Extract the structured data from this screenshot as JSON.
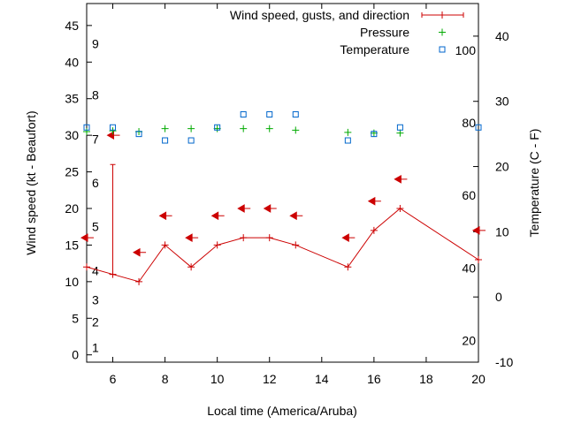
{
  "chart_data": {
    "type": "line",
    "xlabel": "Local time (America/Aruba)",
    "ylabel_left": "Wind speed (kt - Beaufort)",
    "ylabel_right": "Temperature (C - F)",
    "xlim": [
      5,
      20
    ],
    "ylim_left": [
      -1,
      48
    ],
    "ylim_right_celsius": [
      -10,
      45
    ],
    "x_ticks": [
      "6",
      "8",
      "10",
      "12",
      "14",
      "16",
      "18",
      "20"
    ],
    "y_left_ticks": [
      "0",
      "5",
      "10",
      "15",
      "20",
      "25",
      "30",
      "35",
      "40",
      "45"
    ],
    "y_right_celsius_ticks": [
      "-10",
      "0",
      "10",
      "20",
      "30",
      "40"
    ],
    "beaufort_labels": [
      {
        "text": "1",
        "kt": 1
      },
      {
        "text": "2",
        "kt": 4.5
      },
      {
        "text": "3",
        "kt": 7.5
      },
      {
        "text": "4",
        "kt": 11.5
      },
      {
        "text": "5",
        "kt": 17.5
      },
      {
        "text": "6",
        "kt": 23.5
      },
      {
        "text": "7",
        "kt": 29.5
      },
      {
        "text": "8",
        "kt": 35.5
      },
      {
        "text": "9",
        "kt": 42.5
      }
    ],
    "fahrenheit_labels": [
      {
        "text": "20",
        "celsius": -6.7
      },
      {
        "text": "40",
        "celsius": 4.4
      },
      {
        "text": "60",
        "celsius": 15.6
      },
      {
        "text": "80",
        "celsius": 26.7
      },
      {
        "text": "100",
        "celsius": 37.8
      }
    ],
    "legend_position": "top-right",
    "series": [
      {
        "name": "Wind speed, gusts, and direction",
        "color": "#cc0000",
        "x": [
          5,
          6,
          7,
          8,
          9,
          10,
          11,
          12,
          13,
          15,
          16,
          17,
          20
        ],
        "speed": [
          12,
          11,
          10,
          15,
          12,
          15,
          16,
          16,
          15,
          12,
          17,
          20,
          13
        ],
        "gusts": [
          {
            "x": 6,
            "from": 11,
            "to": 26
          }
        ],
        "direction_arrows": [
          {
            "x": 5,
            "y": 16
          },
          {
            "x": 6,
            "y": 30
          },
          {
            "x": 7,
            "y": 14
          },
          {
            "x": 8,
            "y": 19
          },
          {
            "x": 9,
            "y": 16
          },
          {
            "x": 10,
            "y": 19
          },
          {
            "x": 11,
            "y": 20
          },
          {
            "x": 12,
            "y": 20
          },
          {
            "x": 13,
            "y": 19
          },
          {
            "x": 15,
            "y": 16
          },
          {
            "x": 16,
            "y": 21
          },
          {
            "x": 17,
            "y": 24
          },
          {
            "x": 20,
            "y": 17
          }
        ]
      },
      {
        "name": "Pressure",
        "color": "#00aa00",
        "x": [
          5,
          6,
          7,
          8,
          9,
          10,
          11,
          12,
          13,
          15,
          16,
          17
        ],
        "y": [
          30.5,
          30.6,
          30.5,
          30.9,
          30.9,
          30.9,
          30.9,
          30.9,
          30.7,
          30.4,
          30.3,
          30.3
        ]
      },
      {
        "name": "Temperature",
        "color": "#0066cc",
        "x": [
          5,
          6,
          7,
          8,
          9,
          10,
          11,
          12,
          13,
          15,
          16,
          17,
          20
        ],
        "y_celsius": [
          26,
          26,
          25,
          24,
          24,
          26,
          28,
          28,
          28,
          24,
          25,
          26,
          26
        ]
      }
    ]
  }
}
